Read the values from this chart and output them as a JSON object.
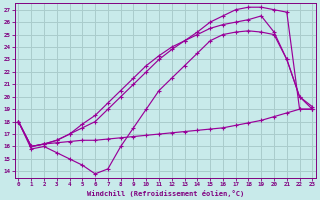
{
  "xlabel": "Windchill (Refroidissement éolien,°C)",
  "background_color": "#c8eaea",
  "grid_color": "#aacccc",
  "line_color": "#990099",
  "x_values": [
    0,
    1,
    2,
    3,
    4,
    5,
    6,
    7,
    8,
    9,
    10,
    11,
    12,
    13,
    14,
    15,
    16,
    17,
    18,
    19,
    20,
    21,
    22,
    23
  ],
  "series_flat": [
    18.0,
    16.0,
    16.2,
    16.3,
    16.4,
    16.5,
    16.5,
    16.6,
    16.7,
    16.8,
    16.9,
    17.0,
    17.1,
    17.2,
    17.3,
    17.4,
    17.5,
    17.7,
    17.9,
    18.1,
    18.4,
    18.7,
    19.0,
    19.0
  ],
  "series_dip": [
    18.0,
    15.8,
    16.0,
    15.5,
    15.0,
    14.5,
    13.8,
    14.2,
    16.0,
    17.5,
    19.0,
    20.5,
    21.5,
    22.5,
    23.5,
    24.5,
    25.0,
    25.2,
    25.3,
    25.2,
    25.0,
    23.0,
    20.0,
    19.0
  ],
  "series_upper": [
    18.0,
    16.0,
    16.2,
    16.5,
    17.0,
    17.8,
    18.5,
    19.5,
    20.5,
    21.5,
    22.5,
    23.3,
    24.0,
    24.5,
    25.2,
    26.0,
    26.5,
    27.0,
    27.2,
    27.2,
    27.0,
    26.8,
    19.0,
    19.0
  ],
  "series_mid": [
    18.0,
    16.0,
    16.2,
    16.5,
    17.0,
    17.5,
    18.0,
    19.0,
    20.0,
    21.0,
    22.0,
    23.0,
    23.8,
    24.5,
    25.0,
    25.5,
    25.8,
    26.0,
    26.2,
    26.5,
    25.2,
    23.0,
    20.0,
    19.2
  ],
  "xlim": [
    -0.3,
    23.3
  ],
  "ylim": [
    13.5,
    27.5
  ],
  "yticks": [
    14,
    15,
    16,
    17,
    18,
    19,
    20,
    21,
    22,
    23,
    24,
    25,
    26,
    27
  ],
  "xticks": [
    0,
    1,
    2,
    3,
    4,
    5,
    6,
    7,
    8,
    9,
    10,
    11,
    12,
    13,
    14,
    15,
    16,
    17,
    18,
    19,
    20,
    21,
    22,
    23
  ]
}
